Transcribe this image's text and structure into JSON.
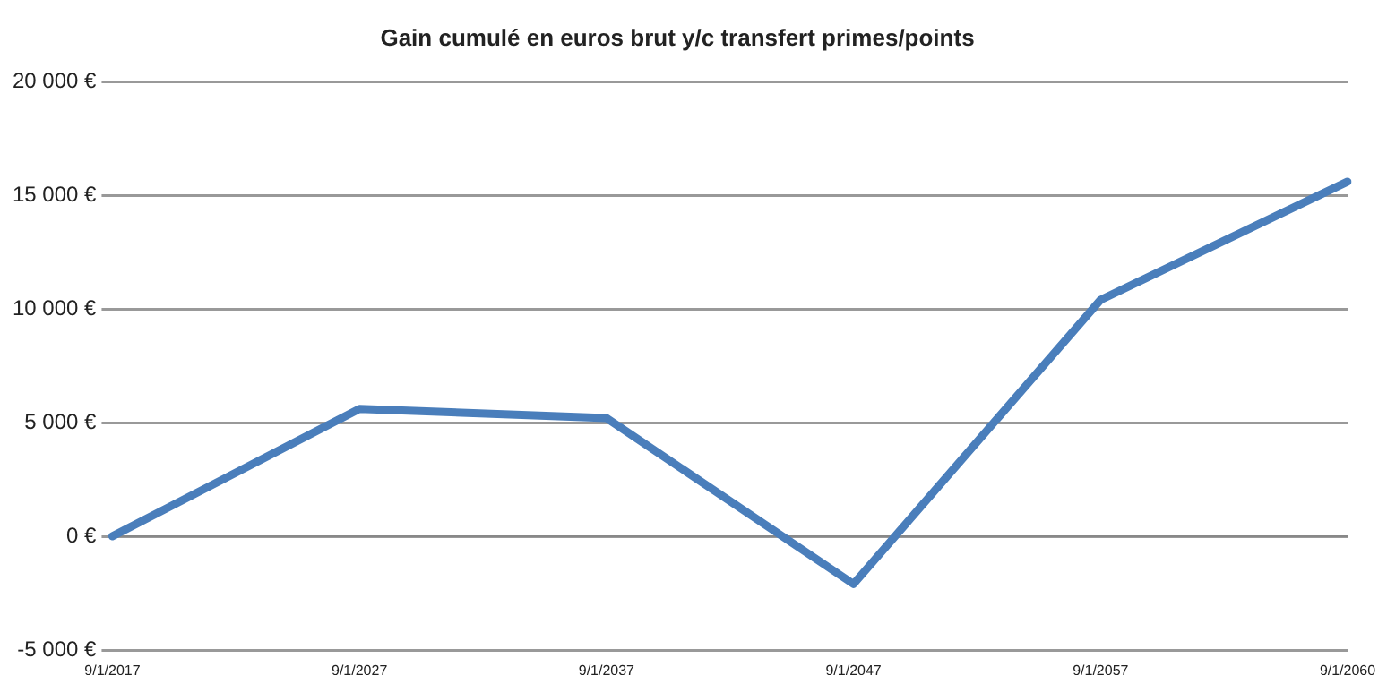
{
  "chart_data": {
    "type": "line",
    "title": "Gain cumulé en euros brut y/c transfert primes/points",
    "categories": [
      "9/1/2017",
      "9/1/2027",
      "9/1/2037",
      "9/1/2047",
      "9/1/2057",
      "9/1/2060"
    ],
    "series": [
      {
        "color": "#4a7ebb",
        "values": [
          0,
          5600,
          5200,
          -2100,
          10400,
          15600
        ]
      }
    ],
    "ylim": [
      -5000,
      20000
    ],
    "yticks": [
      {
        "value": -5000,
        "label": "-5 000 €"
      },
      {
        "value": 0,
        "label": "0 €"
      },
      {
        "value": 5000,
        "label": "5 000 €"
      },
      {
        "value": 10000,
        "label": "10 000 €"
      },
      {
        "value": 15000,
        "label": "15 000 €"
      },
      {
        "value": 20000,
        "label": "20 000 €"
      }
    ],
    "grid": "y",
    "legend": false,
    "marker": "none",
    "line_style": "solid"
  }
}
